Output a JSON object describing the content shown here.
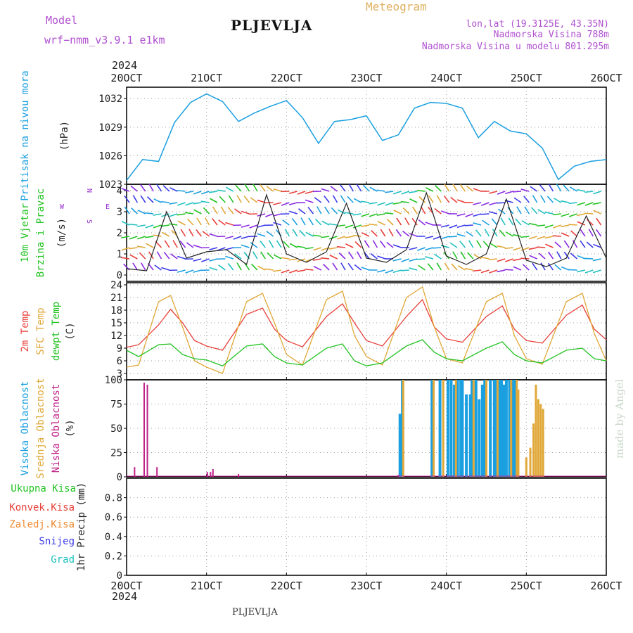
{
  "header": {
    "model_label": "Model",
    "model_name": "wrf−nmm_v3.9.1  e1km",
    "station_title": "PLJEVLJA",
    "meteogram": "Meteogram",
    "location": "lon,lat (19.3125E, 43.35N)",
    "altitude": "Nadmorska Visina 788m",
    "model_altitude": "Nadmorska Visina u modelu 801.295m",
    "year_top": "2024",
    "year_bottom": "2024",
    "footer_station": "PLJEVLJA",
    "credit": "made by Angel"
  },
  "colors": {
    "pressure": "#1a9fe0",
    "t2m": "#e8403a",
    "sfc": "#e0a838",
    "dewpt": "#22c322",
    "high_cloud": "#1a9fe0",
    "mid_cloud": "#e0a838",
    "low_cloud": "#c0208a",
    "wind_label": "#9b30d0"
  },
  "chart_data": [
    {
      "type": "line",
      "panel": "pressure",
      "title": "",
      "ylabel_lines": [
        "Pritisak na nivou mora",
        "(hPa)"
      ],
      "x_tick_labels": [
        "20OCT",
        "21OCT",
        "22OCT",
        "23OCT",
        "24OCT",
        "25OCT",
        "26OCT"
      ],
      "ylim": [
        1023,
        1033.2
      ],
      "y_ticks": [
        1023,
        1026,
        1029,
        1032
      ],
      "grid": true,
      "series": [
        {
          "name": "",
          "x": [
            0,
            0.2,
            0.4,
            0.6,
            0.8,
            1.0,
            1.2,
            1.4,
            1.6,
            1.8,
            2.0,
            2.2,
            2.4,
            2.6,
            2.8,
            3.0,
            3.2,
            3.4,
            3.6,
            3.8,
            4.0,
            4.2,
            4.4,
            4.6,
            4.8,
            5.0,
            5.2,
            5.4,
            5.6,
            5.8,
            6.0
          ],
          "values": [
            1023.4,
            1025.6,
            1025.4,
            1029.5,
            1031.6,
            1032.5,
            1031.7,
            1029.6,
            1030.5,
            1031.2,
            1031.8,
            1030.0,
            1027.3,
            1029.6,
            1029.8,
            1030.2,
            1027.6,
            1028.2,
            1031.0,
            1031.6,
            1031.5,
            1031.0,
            1027.9,
            1029.6,
            1028.6,
            1028.3,
            1026.8,
            1023.5,
            1024.9,
            1025.4,
            1025.6
          ]
        }
      ]
    },
    {
      "type": "line",
      "panel": "wind",
      "ylabel_lines": [
        "10m Vjetar",
        "Brzina i Pravac",
        "(m/s)"
      ],
      "compass_labels": [
        "N",
        "S",
        "E",
        "W"
      ],
      "ylim": [
        -0.3,
        4.3
      ],
      "y_ticks": [
        0,
        1,
        2,
        3,
        4
      ],
      "grid": true,
      "series": [
        {
          "name": "",
          "x": [
            0,
            0.25,
            0.5,
            0.75,
            1.0,
            1.25,
            1.5,
            1.75,
            2.0,
            2.25,
            2.5,
            2.75,
            3.0,
            3.25,
            3.5,
            3.75,
            4.0,
            4.25,
            4.5,
            4.75,
            5.0,
            5.25,
            5.5,
            5.75,
            6.0
          ],
          "values": [
            0.3,
            0.2,
            3.0,
            0.8,
            1.1,
            1.2,
            0.5,
            3.8,
            1.0,
            0.6,
            1.1,
            3.4,
            0.8,
            0.6,
            1.2,
            3.9,
            0.9,
            0.5,
            1.0,
            3.6,
            0.7,
            0.4,
            0.8,
            2.8,
            0.8
          ]
        }
      ]
    },
    {
      "type": "line",
      "panel": "temperature",
      "ylabel_lines": [
        "2m Temp",
        "SFC Temp",
        "dewpt Temp",
        "(C)"
      ],
      "ylim": [
        1.5,
        24.5
      ],
      "y_ticks": [
        3,
        6,
        9,
        12,
        15,
        18,
        21,
        24
      ],
      "grid": true,
      "series": [
        {
          "name": "2m Temp",
          "x": [
            0,
            0.15,
            0.4,
            0.55,
            0.7,
            0.85,
            1.0,
            1.2,
            1.5,
            1.7,
            1.85,
            2.0,
            2.2,
            2.5,
            2.7,
            2.85,
            3.0,
            3.2,
            3.5,
            3.7,
            3.85,
            4.0,
            4.2,
            4.5,
            4.7,
            4.85,
            5.0,
            5.2,
            5.5,
            5.7,
            5.85,
            6.0
          ],
          "values": [
            9.2,
            9.8,
            14.5,
            18.2,
            15.0,
            10.8,
            9.5,
            8.5,
            17.0,
            18.5,
            13.5,
            10.8,
            9.3,
            16.5,
            19.5,
            15.0,
            10.8,
            9.5,
            16.5,
            20.5,
            14.0,
            11.2,
            10.4,
            16.5,
            19.0,
            13.5,
            10.8,
            10.2,
            16.8,
            19.2,
            13.5,
            11.0
          ]
        },
        {
          "name": "SFC Temp",
          "x": [
            0,
            0.15,
            0.4,
            0.55,
            0.7,
            0.85,
            1.0,
            1.2,
            1.5,
            1.7,
            1.85,
            2.0,
            2.2,
            2.5,
            2.7,
            2.85,
            3.0,
            3.2,
            3.5,
            3.7,
            3.85,
            4.0,
            4.2,
            4.5,
            4.7,
            4.85,
            5.0,
            5.2,
            5.5,
            5.7,
            5.85,
            6.0
          ],
          "values": [
            4.5,
            5.0,
            20.0,
            21.5,
            14.0,
            6.0,
            4.5,
            3.0,
            20.0,
            22.0,
            15.0,
            7.5,
            5.0,
            20.5,
            22.5,
            12.0,
            7.0,
            5.0,
            21.0,
            23.5,
            14.0,
            6.5,
            5.5,
            20.0,
            22.0,
            12.0,
            6.5,
            5.2,
            20.0,
            22.0,
            12.5,
            6.0
          ]
        },
        {
          "name": "dewpt Temp",
          "x": [
            0,
            0.15,
            0.4,
            0.55,
            0.7,
            0.85,
            1.0,
            1.2,
            1.5,
            1.7,
            1.85,
            2.0,
            2.2,
            2.5,
            2.7,
            2.85,
            3.0,
            3.2,
            3.5,
            3.7,
            3.85,
            4.0,
            4.2,
            4.5,
            4.7,
            4.85,
            5.0,
            5.2,
            5.5,
            5.7,
            5.85,
            6.0
          ],
          "values": [
            8.5,
            7.0,
            9.8,
            10.0,
            7.5,
            6.5,
            6.2,
            4.8,
            9.5,
            10.0,
            7.0,
            5.5,
            5.0,
            9.0,
            10.0,
            6.0,
            4.8,
            5.5,
            9.5,
            11.0,
            8.0,
            6.5,
            6.0,
            9.0,
            10.5,
            7.5,
            6.0,
            5.5,
            8.5,
            9.0,
            6.5,
            6.0
          ]
        }
      ]
    },
    {
      "type": "bar",
      "panel": "cloud",
      "ylabel_lines": [
        "Visoka Oblacnost",
        "Srednja Oblacnost",
        "Niska Oblacnost",
        "(%)"
      ],
      "ylim": [
        0,
        100
      ],
      "y_ticks": [
        0,
        25,
        50,
        75,
        100
      ],
      "grid": true,
      "series": [
        {
          "name": "Visoka Oblacnost",
          "x": [
            3.42,
            3.45,
            3.82,
            3.92,
            4.02,
            4.06,
            4.1,
            4.14,
            4.18,
            4.2,
            4.25,
            4.3,
            4.32,
            4.37,
            4.41,
            4.45,
            4.48,
            4.55,
            4.6,
            4.63,
            4.66,
            4.69,
            4.72,
            4.75,
            4.79,
            4.83,
            4.86
          ],
          "values": [
            65,
            100,
            100,
            100,
            100,
            100,
            95,
            100,
            100,
            100,
            85,
            85,
            100,
            100,
            80,
            95,
            100,
            100,
            100,
            100,
            100,
            100,
            95,
            100,
            100,
            100,
            100
          ]
        },
        {
          "name": "Srednja Oblacnost",
          "x": [
            3.46,
            3.84,
            3.96,
            4.12,
            4.34,
            4.5,
            4.64,
            4.81,
            4.88,
            4.9,
            5.0,
            5.05,
            5.09,
            5.12,
            5.15,
            5.18,
            5.21
          ],
          "values": [
            100,
            100,
            100,
            100,
            100,
            100,
            100,
            100,
            100,
            90,
            20,
            30,
            55,
            95,
            80,
            75,
            70
          ]
        },
        {
          "name": "Niska Oblacnost",
          "x": [
            0.1,
            0.22,
            0.26,
            0.38,
            1.01,
            1.05,
            1.08,
            1.4,
            3.4
          ],
          "values": [
            10,
            97,
            95,
            10,
            5,
            5,
            8,
            3,
            2
          ]
        }
      ]
    },
    {
      "type": "bar",
      "panel": "precipitation",
      "ylabel_lines": [
        "1hr Precip (mm)"
      ],
      "legend": [
        "Ukupna Kisa",
        "Konvek.Kisa",
        "Zaledj.Kisa",
        "Snijeg",
        "Grad"
      ],
      "ylim": [
        0,
        1.0
      ],
      "y_ticks": [
        0,
        0.2,
        0.4,
        0.6,
        0.8
      ],
      "y_tick_labels": [
        "0",
        "0.2",
        "0.4",
        "0.6",
        "0.8"
      ],
      "grid": true,
      "series": []
    }
  ]
}
